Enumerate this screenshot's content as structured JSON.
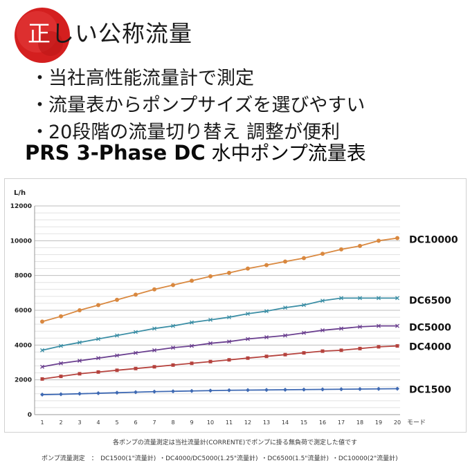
{
  "header": {
    "badge_colors": [
      "#d41f1f",
      "#e23a3a"
    ],
    "title": "正しい公称流量"
  },
  "bullets": [
    "当社高性能流量計で測定",
    "流量表からポンプサイズを選びやすい",
    "20段階の流量切り替え 調整が便利"
  ],
  "bullet_mark": "・",
  "main_title": {
    "en": "PRS 3-Phase DC",
    "jp": "水中ポンプ流量表"
  },
  "chart_data": {
    "type": "line",
    "ylabel": "L/h",
    "xlabel": "モード",
    "x": [
      1,
      2,
      3,
      4,
      5,
      6,
      7,
      8,
      9,
      10,
      11,
      12,
      13,
      14,
      15,
      16,
      17,
      18,
      19,
      20
    ],
    "ylim": [
      0,
      12000
    ],
    "yticks": [
      0,
      2000,
      4000,
      6000,
      8000,
      10000,
      12000
    ],
    "ytick_labels": [
      "0",
      "2000",
      "4000",
      "6000",
      "8000",
      "10000",
      "12000"
    ],
    "grid": true,
    "series": [
      {
        "name": "DC10000",
        "color": "#d9883f",
        "marker": "circle",
        "values": [
          5350,
          5650,
          6000,
          6300,
          6600,
          6900,
          7200,
          7450,
          7700,
          7950,
          8150,
          8400,
          8600,
          8800,
          9000,
          9250,
          9500,
          9700,
          10000,
          10150
        ]
      },
      {
        "name": "DC6500",
        "color": "#3b8ea5",
        "marker": "x",
        "values": [
          3700,
          3950,
          4150,
          4350,
          4550,
          4750,
          4950,
          5100,
          5300,
          5450,
          5600,
          5800,
          5950,
          6150,
          6300,
          6550,
          6700,
          6700,
          6700,
          6700
        ]
      },
      {
        "name": "DC5000",
        "color": "#6a3f8f",
        "marker": "x",
        "values": [
          2750,
          2950,
          3100,
          3250,
          3400,
          3550,
          3700,
          3850,
          3950,
          4100,
          4200,
          4350,
          4450,
          4550,
          4700,
          4850,
          4950,
          5050,
          5100,
          5100
        ]
      },
      {
        "name": "DC4000",
        "color": "#b5423d",
        "marker": "square",
        "values": [
          2050,
          2200,
          2350,
          2450,
          2550,
          2650,
          2750,
          2850,
          2950,
          3050,
          3150,
          3250,
          3350,
          3450,
          3550,
          3650,
          3700,
          3800,
          3900,
          3950
        ]
      },
      {
        "name": "DC1500",
        "color": "#3e69b3",
        "marker": "diamond",
        "values": [
          1150,
          1170,
          1200,
          1230,
          1260,
          1290,
          1320,
          1340,
          1360,
          1380,
          1400,
          1410,
          1420,
          1430,
          1440,
          1450,
          1460,
          1470,
          1480,
          1490
        ]
      }
    ]
  },
  "footnote": "各ポンプの流量測定は当社流量計(CORRENTE)でポンプに掛る無負荷で測定した値です",
  "footnote2": "ポンプ流量測定　：　DC1500(1\"流量計) ・DC4000/DC5000(1.25\"流量計) ・DC6500(1.5\"流量計) ・DC10000(2\"流量計)"
}
